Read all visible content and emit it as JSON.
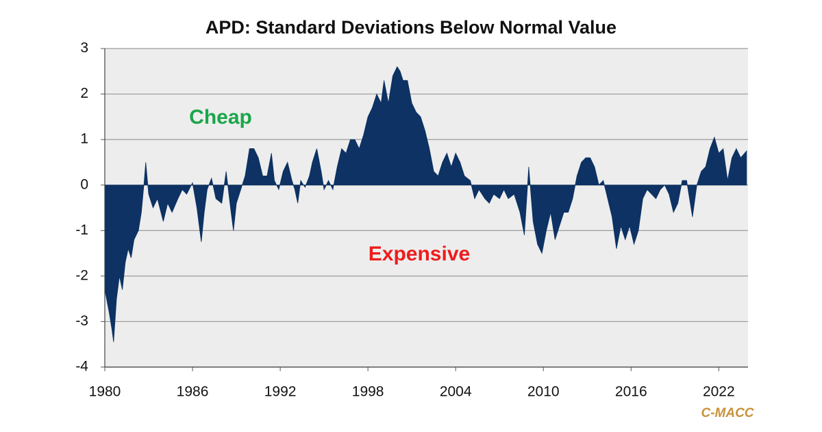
{
  "chart_data": {
    "type": "area",
    "title": "APD: Standard Deviations Below Normal Value",
    "annotations": [
      {
        "text": "Cheap",
        "color": "#1aa64a"
      },
      {
        "text": "Expensive",
        "color": "#ee1c1c"
      },
      {
        "text": "C-MACC",
        "color": "#c8923a"
      }
    ],
    "x": [
      1980.0,
      1980.3,
      1980.5,
      1980.6,
      1980.8,
      1981.0,
      1981.2,
      1981.4,
      1981.6,
      1981.8,
      1982.0,
      1982.3,
      1982.5,
      1982.7,
      1982.8,
      1983.0,
      1983.3,
      1983.6,
      1984.0,
      1984.3,
      1984.6,
      1985.0,
      1985.3,
      1985.6,
      1986.0,
      1986.3,
      1986.6,
      1986.8,
      1987.0,
      1987.3,
      1987.6,
      1988.0,
      1988.3,
      1988.6,
      1988.8,
      1989.0,
      1989.3,
      1989.6,
      1989.9,
      1990.2,
      1990.5,
      1990.8,
      1991.1,
      1991.4,
      1991.6,
      1991.9,
      1992.2,
      1992.5,
      1992.8,
      1993.0,
      1993.2,
      1993.4,
      1993.7,
      1994.0,
      1994.2,
      1994.5,
      1994.8,
      1995.0,
      1995.3,
      1995.6,
      1995.9,
      1996.2,
      1996.5,
      1996.8,
      1997.1,
      1997.4,
      1997.7,
      1998.0,
      1998.3,
      1998.6,
      1998.9,
      1999.1,
      1999.4,
      1999.7,
      2000.0,
      2000.2,
      2000.4,
      2000.7,
      2001.0,
      2001.3,
      2001.6,
      2001.9,
      2002.2,
      2002.5,
      2002.8,
      2003.1,
      2003.4,
      2003.7,
      2004.0,
      2004.3,
      2004.6,
      2005.0,
      2005.3,
      2005.6,
      2006.0,
      2006.3,
      2006.6,
      2007.0,
      2007.3,
      2007.6,
      2008.0,
      2008.4,
      2008.7,
      2009.0,
      2009.3,
      2009.6,
      2009.9,
      2010.2,
      2010.5,
      2010.8,
      2011.1,
      2011.4,
      2011.7,
      2012.0,
      2012.3,
      2012.6,
      2012.9,
      2013.2,
      2013.5,
      2013.8,
      2014.1,
      2014.4,
      2014.7,
      2015.0,
      2015.3,
      2015.6,
      2015.9,
      2016.2,
      2016.5,
      2016.8,
      2017.1,
      2017.4,
      2017.7,
      2018.0,
      2018.3,
      2018.6,
      2018.9,
      2019.2,
      2019.5,
      2019.8,
      2020.2,
      2020.5,
      2020.8,
      2021.1,
      2021.4,
      2021.7,
      2022.0,
      2022.3,
      2022.6,
      2022.9,
      2023.2,
      2023.5,
      2023.9
    ],
    "series": [
      {
        "color": "#0d3263",
        "values": [
          -2.3,
          -2.8,
          -3.2,
          -3.45,
          -2.5,
          -2.0,
          -2.3,
          -1.7,
          -1.4,
          -1.6,
          -1.2,
          -1.0,
          -0.6,
          0.1,
          0.5,
          -0.2,
          -0.5,
          -0.3,
          -0.8,
          -0.4,
          -0.6,
          -0.3,
          -0.1,
          -0.2,
          0.05,
          -0.5,
          -1.25,
          -0.6,
          -0.1,
          0.15,
          -0.3,
          -0.4,
          0.3,
          -0.5,
          -1.0,
          -0.4,
          -0.1,
          0.2,
          0.8,
          0.8,
          0.6,
          0.2,
          0.2,
          0.7,
          0.1,
          -0.1,
          0.3,
          0.5,
          0.1,
          -0.1,
          -0.4,
          0.1,
          -0.05,
          0.2,
          0.5,
          0.8,
          0.3,
          -0.1,
          0.1,
          -0.1,
          0.4,
          0.8,
          0.7,
          1.0,
          1.0,
          0.8,
          1.1,
          1.5,
          1.7,
          2.0,
          1.8,
          2.3,
          1.8,
          2.4,
          2.6,
          2.5,
          2.3,
          2.3,
          1.8,
          1.6,
          1.5,
          1.2,
          0.8,
          0.3,
          0.2,
          0.5,
          0.7,
          0.4,
          0.7,
          0.5,
          0.2,
          0.1,
          -0.3,
          -0.1,
          -0.3,
          -0.4,
          -0.2,
          -0.3,
          -0.1,
          -0.3,
          -0.2,
          -0.6,
          -1.1,
          0.4,
          -0.8,
          -1.3,
          -1.5,
          -1.0,
          -0.6,
          -1.2,
          -0.9,
          -0.6,
          -0.6,
          -0.3,
          0.2,
          0.5,
          0.6,
          0.6,
          0.4,
          0.0,
          0.1,
          -0.3,
          -0.7,
          -1.4,
          -0.9,
          -1.2,
          -0.9,
          -1.3,
          -1.0,
          -0.3,
          -0.1,
          -0.2,
          -0.3,
          -0.1,
          0.0,
          -0.2,
          -0.6,
          -0.4,
          0.1,
          0.1,
          -0.7,
          0.0,
          0.3,
          0.4,
          0.8,
          1.05,
          0.7,
          0.8,
          0.1,
          0.6,
          0.8,
          0.6,
          0.75
        ]
      }
    ],
    "xlim": [
      1980,
      2024
    ],
    "xticks": [
      1980,
      1986,
      1992,
      1998,
      2004,
      2010,
      2016,
      2022
    ],
    "ylim": [
      -4,
      3
    ],
    "yticks": [
      -4,
      -3,
      -2,
      -1,
      0,
      1,
      2,
      3
    ],
    "grid": true
  }
}
